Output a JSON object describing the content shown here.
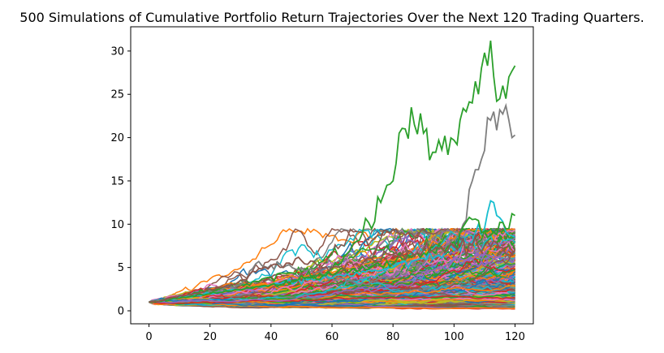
{
  "chart_data": {
    "type": "line",
    "title": "500 Simulations of Cumulative Portfolio Return Trajectories Over the Next 120 Trading Quarters.",
    "xlabel": "",
    "ylabel": "",
    "xlim": [
      -6,
      126
    ],
    "ylim": [
      -1.5,
      32.8
    ],
    "x_ticks": [
      0,
      20,
      40,
      60,
      80,
      100,
      120
    ],
    "y_ticks": [
      0,
      5,
      10,
      15,
      20,
      25,
      30
    ],
    "grid": false,
    "legend": "none",
    "num_simulations": 500,
    "num_steps": 120,
    "start_value": 1.0,
    "palette": [
      "#1f77b4",
      "#ff7f0e",
      "#2ca02c",
      "#d62728",
      "#9467bd",
      "#8c564b",
      "#e377c2",
      "#7f7f7f",
      "#bcbd22",
      "#17becf"
    ],
    "highlight_series": [
      {
        "color": "#2ca02c",
        "points": [
          [
            0,
            1.0
          ],
          [
            10,
            1.6
          ],
          [
            20,
            2.5
          ],
          [
            30,
            3.0
          ],
          [
            40,
            3.8
          ],
          [
            50,
            4.5
          ],
          [
            55,
            4.0
          ],
          [
            60,
            4.8
          ],
          [
            63,
            5.5
          ],
          [
            66,
            7.0
          ],
          [
            68,
            8.0
          ],
          [
            70,
            9.0
          ],
          [
            72,
            10.2
          ],
          [
            74,
            10.3
          ],
          [
            76,
            12.5
          ],
          [
            78,
            14.5
          ],
          [
            80,
            15.0
          ],
          [
            81,
            17.0
          ],
          [
            82,
            20.5
          ],
          [
            84,
            21.0
          ],
          [
            86,
            23.5
          ],
          [
            87,
            21.5
          ],
          [
            88,
            20.4
          ],
          [
            89,
            22.8
          ],
          [
            90,
            20.5
          ],
          [
            91,
            21.0
          ],
          [
            92,
            17.4
          ],
          [
            93,
            18.3
          ],
          [
            94,
            18.3
          ],
          [
            95,
            19.7
          ],
          [
            96,
            18.6
          ],
          [
            97,
            20.2
          ],
          [
            98,
            18.0
          ],
          [
            100,
            19.7
          ],
          [
            101,
            19.2
          ],
          [
            102,
            22.0
          ],
          [
            104,
            23.0
          ],
          [
            106,
            24.0
          ],
          [
            107,
            26.5
          ],
          [
            108,
            25.0
          ],
          [
            109,
            28.0
          ],
          [
            110,
            29.8
          ],
          [
            111,
            28.3
          ],
          [
            112,
            31.2
          ],
          [
            114,
            24.2
          ],
          [
            115,
            24.5
          ],
          [
            116,
            26.0
          ],
          [
            117,
            24.5
          ],
          [
            118,
            27.0
          ],
          [
            120,
            28.3
          ]
        ]
      },
      {
        "color": "#7f7f7f",
        "points": [
          [
            0,
            1.0
          ],
          [
            15,
            1.8
          ],
          [
            30,
            3.0
          ],
          [
            33,
            4.6
          ],
          [
            36,
            5.7
          ],
          [
            38,
            5.1
          ],
          [
            40,
            5.3
          ],
          [
            45,
            5.2
          ],
          [
            50,
            5.0
          ],
          [
            55,
            4.5
          ],
          [
            60,
            3.8
          ],
          [
            70,
            3.2
          ],
          [
            80,
            4.0
          ],
          [
            90,
            5.5
          ],
          [
            95,
            6.3
          ],
          [
            100,
            7.8
          ],
          [
            102,
            9.0
          ],
          [
            103,
            10.0
          ],
          [
            104,
            10.5
          ],
          [
            105,
            14.0
          ],
          [
            106,
            15.0
          ],
          [
            107,
            16.3
          ],
          [
            108,
            16.3
          ],
          [
            109,
            17.5
          ],
          [
            110,
            18.5
          ],
          [
            111,
            22.3
          ],
          [
            112,
            22.0
          ],
          [
            113,
            23.0
          ],
          [
            115,
            23.2
          ],
          [
            117,
            23.7
          ],
          [
            118,
            22.0
          ],
          [
            119,
            20.0
          ],
          [
            120,
            20.3
          ]
        ]
      },
      {
        "color": "#17becf",
        "points": [
          [
            0,
            1.0
          ],
          [
            40,
            3.0
          ],
          [
            80,
            5.0
          ],
          [
            100,
            7.0
          ],
          [
            106,
            8.0
          ],
          [
            108,
            10.0
          ],
          [
            110,
            9.5
          ],
          [
            112,
            12.7
          ],
          [
            113,
            12.5
          ],
          [
            114,
            11.0
          ],
          [
            116,
            10.3
          ],
          [
            118,
            8.8
          ],
          [
            120,
            8.5
          ]
        ]
      },
      {
        "color": "#2ca02c",
        "points": [
          [
            0,
            1.0
          ],
          [
            40,
            3.0
          ],
          [
            80,
            5.5
          ],
          [
            100,
            8.0
          ],
          [
            105,
            10.8
          ],
          [
            107,
            10.6
          ],
          [
            109,
            9.0
          ],
          [
            111,
            8.5
          ],
          [
            114,
            8.8
          ],
          [
            116,
            10.2
          ],
          [
            118,
            9.5
          ],
          [
            120,
            11.0
          ]
        ]
      },
      {
        "color": "#8c564b",
        "points": [
          [
            0,
            1.0
          ],
          [
            15,
            2.0
          ],
          [
            25,
            2.8
          ],
          [
            30,
            3.5
          ],
          [
            35,
            4.5
          ],
          [
            40,
            5.2
          ],
          [
            45,
            5.5
          ],
          [
            48,
            6.0
          ],
          [
            50,
            5.8
          ],
          [
            55,
            5.3
          ],
          [
            60,
            5.0
          ],
          [
            70,
            5.5
          ],
          [
            80,
            6.5
          ],
          [
            90,
            7.0
          ],
          [
            100,
            7.5
          ],
          [
            110,
            7.5
          ],
          [
            120,
            7.0
          ]
        ]
      }
    ]
  }
}
